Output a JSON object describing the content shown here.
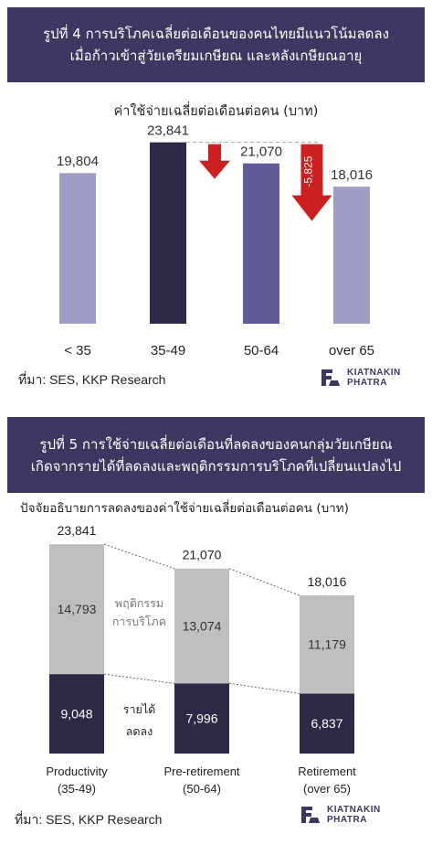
{
  "figure4": {
    "title_line1": "รูปที่ 4 การบริโภคเฉลี่ยต่อเดือนของคนไทยมีแนวโน้มลดลง",
    "title_line2": "เมื่อก้าวเข้าสู่วัยเตรียมเกษียณ และหลังเกษียณอายุ",
    "subtitle": "ค่าใช้จ่ายเฉลี่ยต่อเดือนต่อคน (บาท)",
    "source": "ที่มา: SES, KKP Research",
    "logo_line1": "KIATNAKIN",
    "logo_line2": "PHATRA"
  },
  "figure5": {
    "title_line1": "รูปที่ 5  การใช้จ่ายเฉลี่ยต่อเดือนที่ลดลงของคนกลุ่มวัยเกษียณ",
    "title_line2": "เกิดจากรายได้ที่ลดลงและพฤติกรรมการบริโภคที่เปลี่ยนแปลงไป",
    "subtitle": "ปัจจัยอธิบายการลดลงของค่าใช้จ่ายเฉลี่ยต่อเดือนต่อคน (บาท)",
    "source": "ที่มา: SES, KKP Research",
    "logo_line1": "KIATNAKIN",
    "logo_line2": "PHATRA"
  },
  "chart_data": [
    {
      "type": "bar",
      "categories": [
        "< 35",
        "35-49",
        "50-64",
        "over 65"
      ],
      "values": [
        19804,
        23841,
        21070,
        18016
      ],
      "value_labels": [
        "19,804",
        "23,841",
        "21,070",
        "18,016"
      ],
      "colors": [
        "#a09ec6",
        "#2c2a46",
        "#5f5a98",
        "#a09ec6"
      ],
      "ylim": [
        0,
        25000
      ],
      "annotations": [
        {
          "type": "arrow-down",
          "between": [
            "35-49",
            "50-64"
          ],
          "label": "",
          "color": "#cc1f1f"
        },
        {
          "type": "arrow-down",
          "between": [
            "35-49",
            "over 65"
          ],
          "label": "-5,825",
          "color": "#cc1f1f"
        }
      ]
    },
    {
      "type": "bar",
      "stacked": true,
      "categories": [
        "Productivity",
        "Pre-retirement",
        "Retirement"
      ],
      "category_sublabels": [
        "(35-49)",
        "(50-64)",
        "(over 65)"
      ],
      "series": [
        {
          "name": "รายได้ลดลง",
          "values": [
            9048,
            7996,
            6837
          ],
          "labels": [
            "9,048",
            "7,996",
            "6,837"
          ],
          "color": "#2c2a46"
        },
        {
          "name": "พฤติกรรมการบริโภค",
          "values": [
            14793,
            13074,
            11179
          ],
          "labels": [
            "14,793",
            "13,074",
            "11,179"
          ],
          "color": "#bfbfbf"
        }
      ],
      "totals": [
        23841,
        21070,
        18016
      ],
      "total_labels": [
        "23,841",
        "21,070",
        "18,016"
      ],
      "legend_lines": {
        "behavior": [
          "พฤติกรรม",
          "การบริโภค"
        ],
        "income": [
          "รายได้",
          "ลดลง"
        ]
      },
      "ylim": [
        0,
        25000
      ]
    }
  ]
}
